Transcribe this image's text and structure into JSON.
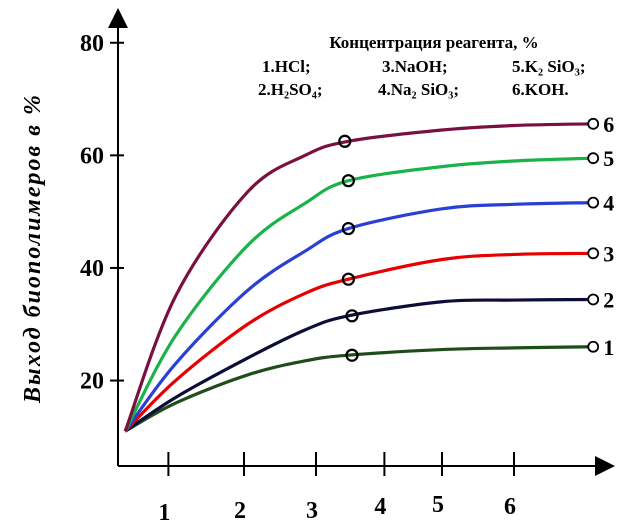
{
  "chart_data": {
    "type": "line",
    "ylabel": "Выход биополимеров в %",
    "xlabel": "",
    "x_ticks": [
      "1",
      "2",
      "3",
      "4",
      "5",
      "6"
    ],
    "y_ticks": [
      "20",
      "40",
      "60",
      "80"
    ],
    "ylim": [
      5,
      90
    ],
    "legend": {
      "title": "Концентрация реагента, %",
      "row1": [
        "1.HCl;",
        "3.NaOH;",
        "5.K₂ SiO₃;"
      ],
      "row2": [
        "2.H₂SO₄;",
        "4.Na₂ SiO₃;",
        "6.KOH."
      ]
    },
    "series": [
      {
        "label": "1",
        "color": "#1f4d1a",
        "values": [
          {
            "x": 0.1,
            "y": 11
          },
          {
            "x": 0.8,
            "y": 16
          },
          {
            "x": 1.8,
            "y": 21
          },
          {
            "x": 2.6,
            "y": 23.5
          },
          {
            "x": 3.2,
            "y": 24.5
          },
          {
            "x": 4.5,
            "y": 25.5
          },
          {
            "x": 5.5,
            "y": 25.8
          },
          {
            "x": 6.6,
            "y": 26
          }
        ]
      },
      {
        "label": "2",
        "color": "#0d0d3a",
        "values": [
          {
            "x": 0.1,
            "y": 11
          },
          {
            "x": 0.8,
            "y": 17
          },
          {
            "x": 1.8,
            "y": 24
          },
          {
            "x": 2.6,
            "y": 29
          },
          {
            "x": 3.2,
            "y": 31.5
          },
          {
            "x": 4.5,
            "y": 34
          },
          {
            "x": 5.5,
            "y": 34.3
          },
          {
            "x": 6.6,
            "y": 34.4
          }
        ]
      },
      {
        "label": "3",
        "color": "#e60000",
        "values": [
          {
            "x": 0.1,
            "y": 11
          },
          {
            "x": 0.8,
            "y": 20
          },
          {
            "x": 1.8,
            "y": 30
          },
          {
            "x": 2.6,
            "y": 35.5
          },
          {
            "x": 3.2,
            "y": 38
          },
          {
            "x": 4.5,
            "y": 41.5
          },
          {
            "x": 5.5,
            "y": 42.4
          },
          {
            "x": 6.6,
            "y": 42.6
          }
        ]
      },
      {
        "label": "4",
        "color": "#2a3fd4",
        "values": [
          {
            "x": 0.1,
            "y": 11
          },
          {
            "x": 0.8,
            "y": 23
          },
          {
            "x": 1.8,
            "y": 36
          },
          {
            "x": 2.6,
            "y": 43
          },
          {
            "x": 3.2,
            "y": 47
          },
          {
            "x": 4.5,
            "y": 50.5
          },
          {
            "x": 5.5,
            "y": 51.3
          },
          {
            "x": 6.6,
            "y": 51.6
          }
        ]
      },
      {
        "label": "5",
        "color": "#19b34a",
        "values": [
          {
            "x": 0.1,
            "y": 11
          },
          {
            "x": 0.8,
            "y": 28
          },
          {
            "x": 1.8,
            "y": 44
          },
          {
            "x": 2.6,
            "y": 51.5
          },
          {
            "x": 3.2,
            "y": 55.5
          },
          {
            "x": 4.5,
            "y": 58
          },
          {
            "x": 5.5,
            "y": 59
          },
          {
            "x": 6.6,
            "y": 59.5
          }
        ]
      },
      {
        "label": "6",
        "color": "#7a1040",
        "values": [
          {
            "x": 0.1,
            "y": 11
          },
          {
            "x": 0.8,
            "y": 35
          },
          {
            "x": 1.8,
            "y": 53.5
          },
          {
            "x": 2.6,
            "y": 60
          },
          {
            "x": 3.2,
            "y": 62.5
          },
          {
            "x": 4.5,
            "y": 64.5
          },
          {
            "x": 5.5,
            "y": 65.3
          },
          {
            "x": 6.6,
            "y": 65.6
          }
        ]
      }
    ],
    "markers": [
      {
        "series": "1",
        "x": 3.25,
        "y": 24.5
      },
      {
        "series": "2",
        "x": 3.25,
        "y": 31.5
      },
      {
        "series": "3",
        "x": 3.2,
        "y": 38
      },
      {
        "series": "4",
        "x": 3.2,
        "y": 47
      },
      {
        "series": "5",
        "x": 3.2,
        "y": 55.5
      },
      {
        "series": "6",
        "x": 3.15,
        "y": 62.5
      }
    ]
  }
}
